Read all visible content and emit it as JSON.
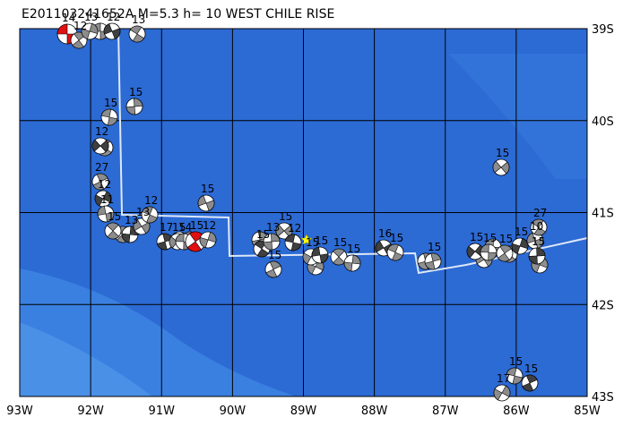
{
  "title": "E201103241652A M=5.3 h= 10 WEST CHILE RISE",
  "x_axis": [
    "93W",
    "92W",
    "91W",
    "90W",
    "89W",
    "88W",
    "87W",
    "86W",
    "85W"
  ],
  "y_axis": [
    "39S",
    "40S",
    "41S",
    "42S",
    "43S"
  ],
  "events": [
    {
      "label": "14",
      "color": "#e01010"
    },
    {
      "label": "12"
    },
    {
      "label": "13"
    },
    {
      "label": "12"
    },
    {
      "label": "13"
    },
    {
      "label": "15"
    },
    {
      "label": "12"
    },
    {
      "label": "15"
    },
    {
      "label": "27"
    },
    {
      "label": "12"
    },
    {
      "label": "11"
    },
    {
      "label": "15"
    },
    {
      "label": "13"
    },
    {
      "label": "13"
    },
    {
      "label": "12"
    },
    {
      "label": "17"
    },
    {
      "label": "15"
    },
    {
      "label": "14"
    },
    {
      "label": "15",
      "color": "#e01010"
    },
    {
      "label": "12"
    },
    {
      "label": "15"
    },
    {
      "label": "15"
    },
    {
      "label": "13"
    },
    {
      "label": "15"
    },
    {
      "label": "12"
    },
    {
      "label": "15"
    },
    {
      "label": "15"
    },
    {
      "label": "15"
    },
    {
      "label": "15"
    },
    {
      "label": "15"
    },
    {
      "label": "16"
    },
    {
      "label": "15"
    },
    {
      "label": "15"
    },
    {
      "label": "15"
    },
    {
      "label": "15"
    },
    {
      "label": "15"
    },
    {
      "label": "15"
    },
    {
      "label": "10"
    },
    {
      "label": "27"
    },
    {
      "label": "15"
    },
    {
      "label": "15"
    },
    {
      "label": "15"
    },
    {
      "label": "15"
    },
    {
      "label": "17"
    }
  ]
}
